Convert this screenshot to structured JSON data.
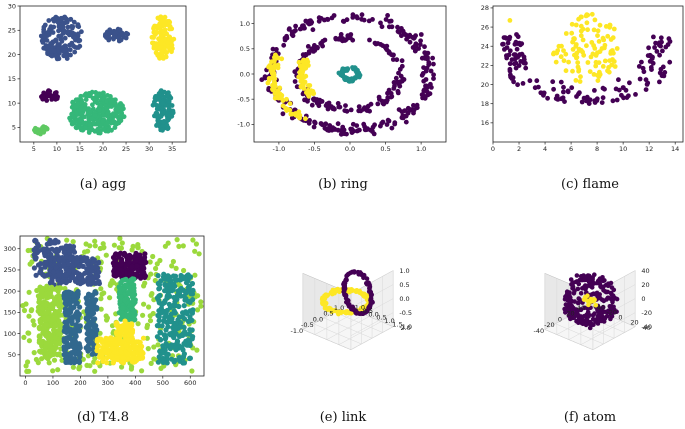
{
  "colors": {
    "purple": "#440154",
    "blue": "#3b528b",
    "teal": "#21918c",
    "green": "#5ec962",
    "yellow": "#fde725",
    "lime": "#9bd93c",
    "navy": "#31688e",
    "seafoam": "#35b779"
  },
  "chart_data": [
    {
      "id": "agg",
      "caption": "(a)  agg",
      "type": "scatter",
      "xlim": [
        2,
        38
      ],
      "ylim": [
        2,
        30
      ],
      "xticks": [
        "5",
        "10",
        "15",
        "20",
        "25",
        "30",
        "35"
      ],
      "xtick_values": [
        5,
        10,
        15,
        20,
        25,
        30,
        35
      ],
      "yticks": [
        "5",
        "10",
        "15",
        "20",
        "25",
        "30"
      ],
      "ytick_values": [
        5,
        10,
        15,
        20,
        25,
        30
      ],
      "clusters": [
        {
          "shape": "ellipse",
          "cx": 11,
          "cy": 23.5,
          "rx": 4.5,
          "ry": 4.5,
          "n": 170,
          "color": "blue"
        },
        {
          "shape": "ellipse",
          "cx": 23,
          "cy": 24,
          "rx": 2.6,
          "ry": 1.4,
          "n": 40,
          "color": "blue"
        },
        {
          "shape": "ellipse",
          "cx": 33,
          "cy": 23.5,
          "rx": 2.4,
          "ry": 4.6,
          "n": 130,
          "color": "yellow"
        },
        {
          "shape": "ellipse",
          "cx": 8.5,
          "cy": 11.5,
          "rx": 2.0,
          "ry": 1.2,
          "n": 30,
          "color": "purple"
        },
        {
          "shape": "ellipse",
          "cx": 6.5,
          "cy": 4.5,
          "rx": 1.5,
          "ry": 0.9,
          "n": 30,
          "color": "green"
        },
        {
          "shape": "ellipse",
          "cx": 18.5,
          "cy": 8,
          "rx": 6.3,
          "ry": 4.3,
          "n": 300,
          "color": "seafoam"
        },
        {
          "shape": "ellipse",
          "cx": 33,
          "cy": 8.5,
          "rx": 2.4,
          "ry": 4.2,
          "n": 110,
          "color": "teal"
        }
      ]
    },
    {
      "id": "ring",
      "caption": "(b)  ring",
      "type": "scatter",
      "xlim": [
        -1.35,
        1.35
      ],
      "ylim": [
        -1.35,
        1.35
      ],
      "xticks": [
        "-1.0",
        "-0.5",
        "0.0",
        "0.5",
        "1.0"
      ],
      "xtick_values": [
        -1,
        -0.5,
        0,
        0.5,
        1
      ],
      "yticks": [
        "-1.0",
        "-0.5",
        "0.0",
        "0.5",
        "1.0"
      ],
      "ytick_values": [
        -1,
        -0.5,
        0,
        0.5,
        1
      ],
      "clusters": [
        {
          "shape": "ring",
          "cx": 0,
          "cy": 0,
          "r": 1.12,
          "w": 0.1,
          "n": 260,
          "color": "purple"
        },
        {
          "shape": "ring",
          "cx": 0,
          "cy": 0,
          "r": 0.72,
          "w": 0.08,
          "n": 160,
          "color": "purple"
        },
        {
          "shape": "ring",
          "cx": 0,
          "cy": 0,
          "r": 0.12,
          "w": 0.04,
          "n": 50,
          "color": "teal"
        },
        {
          "shape": "arc",
          "cx": 0,
          "cy": 0,
          "r": 1.08,
          "w": 0.08,
          "a0": 160,
          "a1": 235,
          "n": 70,
          "color": "yellow"
        },
        {
          "shape": "arc",
          "cx": 0,
          "cy": 0,
          "r": 0.68,
          "w": 0.07,
          "a0": 155,
          "a1": 220,
          "n": 50,
          "color": "yellow"
        }
      ]
    },
    {
      "id": "flame",
      "caption": "(c)  flame",
      "type": "scatter",
      "xlim": [
        0,
        14.6
      ],
      "ylim": [
        14,
        28.2
      ],
      "xticks": [
        "0",
        "2",
        "4",
        "6",
        "8",
        "10",
        "12",
        "14"
      ],
      "xtick_values": [
        0,
        2,
        4,
        6,
        8,
        10,
        12,
        14
      ],
      "yticks": [
        "16",
        "18",
        "20",
        "22",
        "24",
        "26",
        "28"
      ],
      "ytick_values": [
        16,
        18,
        20,
        22,
        24,
        26,
        28
      ],
      "clusters": [
        {
          "shape": "ellipse",
          "cx": 7.2,
          "cy": 23.8,
          "rx": 2.6,
          "ry": 3.6,
          "n": 110,
          "color": "yellow"
        },
        {
          "shape": "bowl",
          "cx": 7.2,
          "cy": 19,
          "rx": 6.5,
          "ry": 4.5,
          "n": 150,
          "color": "purple"
        },
        {
          "shape": "point",
          "x": 1.3,
          "y": 26.7,
          "color": "yellow"
        }
      ]
    },
    {
      "id": "t48",
      "caption": "(d)  T4.8",
      "type": "scatter",
      "xlim": [
        -20,
        650
      ],
      "ylim": [
        0,
        330
      ],
      "xticks": [
        "0",
        "100",
        "200",
        "300",
        "400",
        "500",
        "600"
      ],
      "xtick_values": [
        0,
        100,
        200,
        300,
        400,
        500,
        600
      ],
      "yticks": [
        "50",
        "100",
        "150",
        "200",
        "250",
        "300"
      ],
      "ytick_values": [
        50,
        100,
        150,
        200,
        250,
        300
      ],
      "clusters": [
        {
          "shape": "uniform",
          "x0": -10,
          "x1": 640,
          "y0": 10,
          "y1": 325,
          "n": 320,
          "color": "lime"
        },
        {
          "shape": "rect",
          "x0": 30,
          "x1": 180,
          "y0": 235,
          "y1": 320,
          "n": 120,
          "color": "blue"
        },
        {
          "shape": "rect",
          "x0": 90,
          "x1": 270,
          "y0": 215,
          "y1": 280,
          "n": 170,
          "color": "blue"
        },
        {
          "shape": "rect",
          "x0": 50,
          "x1": 130,
          "y0": 40,
          "y1": 210,
          "n": 230,
          "color": "lime"
        },
        {
          "shape": "rect",
          "x0": 140,
          "x1": 200,
          "y0": 30,
          "y1": 200,
          "n": 180,
          "color": "navy"
        },
        {
          "shape": "rect",
          "x0": 220,
          "x1": 260,
          "y0": 50,
          "y1": 200,
          "n": 110,
          "color": "navy"
        },
        {
          "shape": "rect",
          "x0": 320,
          "x1": 440,
          "y0": 230,
          "y1": 290,
          "n": 160,
          "color": "purple"
        },
        {
          "shape": "rect",
          "x0": 340,
          "x1": 400,
          "y0": 130,
          "y1": 230,
          "n": 150,
          "color": "seafoam"
        },
        {
          "shape": "rect",
          "x0": 260,
          "x1": 430,
          "y0": 30,
          "y1": 90,
          "n": 180,
          "color": "yellow"
        },
        {
          "shape": "rect",
          "x0": 330,
          "x1": 390,
          "y0": 80,
          "y1": 130,
          "n": 60,
          "color": "yellow"
        },
        {
          "shape": "rect",
          "x0": 480,
          "x1": 610,
          "y0": 30,
          "y1": 240,
          "n": 260,
          "color": "teal"
        }
      ]
    },
    {
      "id": "link",
      "caption": "(e)  link",
      "type": "scatter3d",
      "xticks": [
        "-1.0",
        "-0.5",
        "0.0",
        "0.5",
        "1.0"
      ],
      "yticks": [
        "-1.0",
        "-0.5",
        "0.0",
        "0.5",
        "1.0",
        "1.5",
        "2.0"
      ],
      "zticks": [
        "-1.0",
        "-0.5",
        "0.0",
        "0.5",
        "1.0"
      ]
    },
    {
      "id": "atom",
      "caption": "(f)  atom",
      "type": "scatter3d",
      "xticks": [
        "-40",
        "-20",
        "0",
        "20",
        "40"
      ],
      "yticks": [
        "-40",
        "-20",
        "0",
        "20",
        "40"
      ],
      "zticks": [
        "-40",
        "-20",
        "0",
        "20",
        "40"
      ]
    }
  ]
}
